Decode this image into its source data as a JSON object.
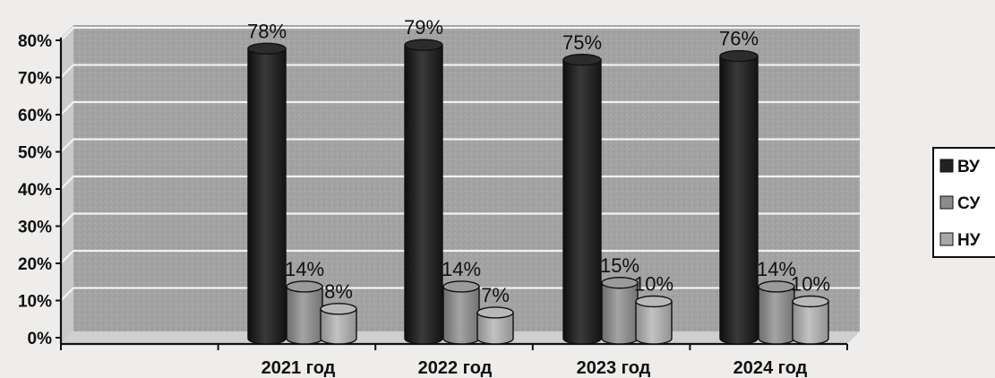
{
  "chart_data": {
    "type": "bar",
    "style": "3d-cylinder",
    "categories": [
      "2021 год",
      "2022 год",
      "2023 год",
      "2024 год"
    ],
    "series": [
      {
        "name": "ВУ",
        "values": [
          78,
          79,
          75,
          76
        ],
        "labels": [
          "78%",
          "79%",
          "75%",
          "76%"
        ],
        "color": "#222222"
      },
      {
        "name": "СУ",
        "values": [
          14,
          14,
          15,
          14
        ],
        "labels": [
          "14%",
          "14%",
          "15%",
          "14%"
        ],
        "color": "#8c8c8c"
      },
      {
        "name": "НУ",
        "values": [
          8,
          7,
          10,
          10
        ],
        "labels": [
          "8%",
          "7%",
          "10%",
          "10%"
        ],
        "color": "#a8a8a8"
      }
    ],
    "ylim": [
      0,
      80
    ],
    "yticks": [
      "0%",
      "10%",
      "20%",
      "30%",
      "40%",
      "50%",
      "60%",
      "70%",
      "80%"
    ],
    "grid": true,
    "legend": "right",
    "title": "",
    "xlabel": "",
    "ylabel": ""
  }
}
